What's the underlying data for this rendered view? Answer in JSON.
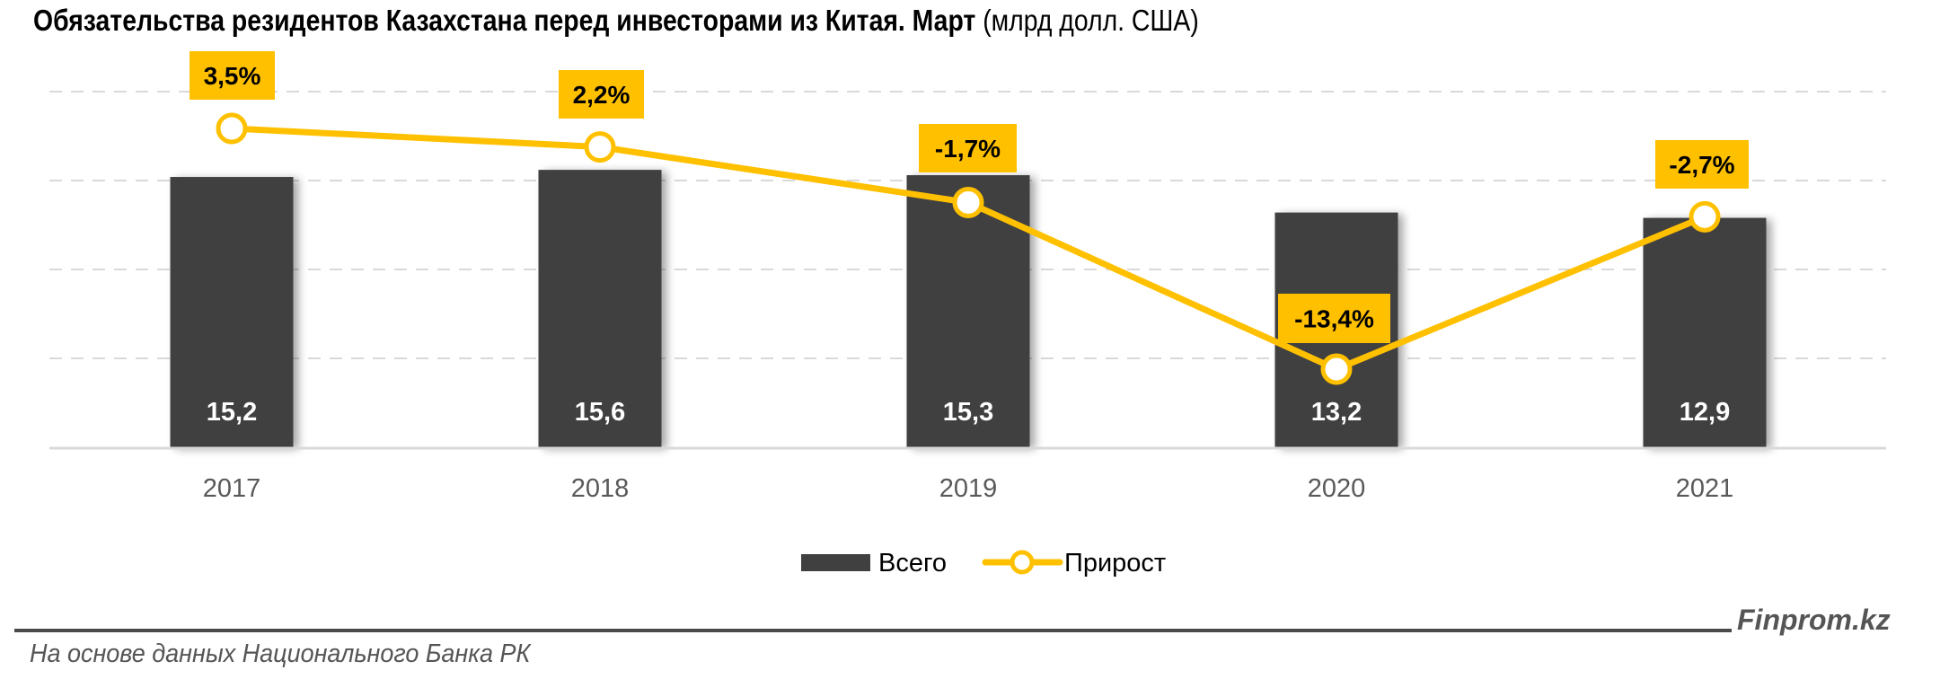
{
  "header": {
    "title": "Обязательства резидентов Казахстана перед инвесторами из Китая. Март",
    "unit": " (млрд долл. США)"
  },
  "footer": {
    "source": "На основе данных Национального Банка РК",
    "brand": "Finprom.kz"
  },
  "colors": {
    "bar": "#404040",
    "line": "#FFC000",
    "label_box": "#FFC000",
    "gridline": "#D9D9D9",
    "axis_text": "#595959"
  },
  "legend": {
    "items": [
      {
        "label": "Всего",
        "type": "bar"
      },
      {
        "label": "Прирост",
        "type": "line"
      }
    ]
  },
  "chart_data": {
    "type": "bar",
    "title": "Обязательства резидентов Казахстана перед инвесторами из Китая. Март (млрд долл. США)",
    "xlabel": "",
    "ylabel": "",
    "categories": [
      "2017",
      "2018",
      "2019",
      "2020",
      "2021"
    ],
    "series": [
      {
        "name": "Всего",
        "type": "bar",
        "axis": "primary",
        "values": [
          15.2,
          15.6,
          15.3,
          13.2,
          12.9
        ],
        "labels": [
          "15,2",
          "15,6",
          "15,3",
          "13,2",
          "12,9"
        ]
      },
      {
        "name": "Прирост",
        "type": "line",
        "axis": "secondary",
        "unit": "%",
        "values": [
          3.5,
          2.2,
          -1.7,
          -13.4,
          -2.7
        ],
        "labels": [
          "3,5%",
          "2,2%",
          "-1,7%",
          "-13,4%",
          "-2,7%"
        ]
      }
    ],
    "ylim": [
      0,
      25
    ],
    "grid": true,
    "legend_position": "bottom"
  }
}
